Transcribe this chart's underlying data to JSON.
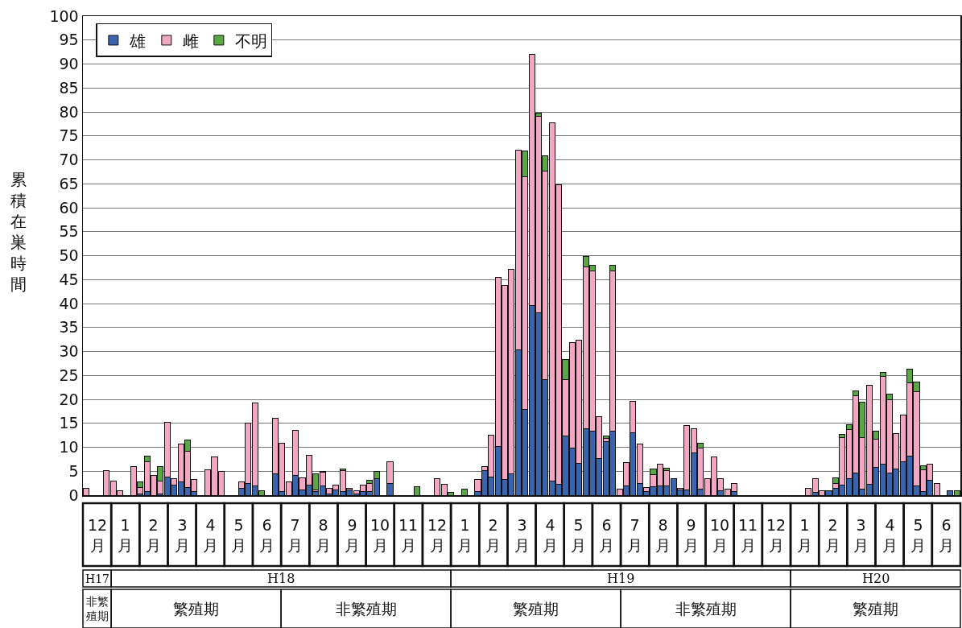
{
  "chart_data": {
    "type": "bar",
    "stacked": true,
    "ylabel": "累積在巣時間",
    "categories": [
      null,
      null,
      null,
      null,
      null,
      null,
      null,
      null,
      null,
      null,
      null,
      null,
      null,
      null,
      null,
      null,
      null,
      null,
      null,
      null,
      null,
      null,
      null,
      null,
      null,
      null,
      null,
      null,
      null,
      null,
      null,
      null,
      null,
      null,
      null,
      null,
      null,
      null,
      null,
      null,
      null,
      null,
      null,
      null,
      null,
      null,
      null,
      null,
      null,
      null,
      null,
      null,
      null,
      null,
      null,
      null,
      null,
      null,
      null,
      null,
      null,
      null,
      null,
      null,
      null,
      null,
      null,
      null,
      null,
      null,
      null,
      null,
      null,
      null,
      null,
      null,
      null,
      null,
      null,
      null,
      null,
      null,
      null,
      null,
      null,
      null,
      null,
      null,
      null,
      null,
      null,
      null,
      null,
      null,
      null,
      null,
      null,
      null,
      null,
      null,
      null,
      null,
      null,
      null,
      null,
      null,
      null,
      null,
      null,
      null,
      null,
      null,
      null,
      null,
      null,
      null,
      null,
      null,
      null,
      null,
      null,
      null,
      null,
      null,
      null,
      null,
      null,
      null,
      null,
      null
    ],
    "series": [
      {
        "name": "雄",
        "color": "#3a64ad",
        "values": [
          null,
          null,
          null,
          null,
          null,
          null,
          null,
          null,
          0.2,
          0.8,
          null,
          0.2,
          3.8,
          2.1,
          2.7,
          1.6,
          0.8,
          null,
          null,
          null,
          null,
          null,
          null,
          1.4,
          2.5,
          2.0,
          null,
          null,
          4.5,
          0.7,
          null,
          4.1,
          1.1,
          2.1,
          0.7,
          1.9,
          0.2,
          1.1,
          0.7,
          1.1,
          0.2,
          0.7,
          0.7,
          3.4,
          null,
          2.5,
          null,
          null,
          null,
          null,
          null,
          null,
          null,
          null,
          null,
          null,
          null,
          null,
          0.7,
          5.2,
          3.7,
          10.2,
          3.2,
          4.4,
          30.3,
          17.9,
          39.6,
          38.1,
          24.2,
          3.0,
          2.3,
          12.3,
          9.8,
          6.7,
          13.9,
          13.4,
          7.7,
          11.2,
          13.4,
          null,
          2.0,
          13.1,
          2.5,
          0.7,
          1.7,
          2.0,
          1.9,
          3.4,
          1.1,
          1.1,
          8.8,
          1.3,
          null,
          null,
          1.0,
          null,
          0.8,
          null,
          null,
          null,
          null,
          null,
          null,
          null,
          null,
          null,
          null,
          null,
          0.6,
          null,
          1.0,
          1.4,
          2.1,
          3.4,
          4.6,
          1.3,
          2.2,
          5.8,
          6.4,
          4.6,
          5.5,
          7.0,
          8.2,
          2.0,
          0.7,
          3.1,
          null,
          null,
          1.0,
          null
        ]
      },
      {
        "name": "雌",
        "color": "#f2a7c3",
        "values": [
          1.4,
          null,
          null,
          5.2,
          3.0,
          1.0,
          null,
          6.0,
          1.4,
          6.2,
          4.2,
          2.7,
          11.4,
          1.4,
          7.9,
          7.6,
          2.4,
          null,
          5.3,
          8.0,
          5.0,
          null,
          null,
          1.4,
          12.6,
          17.3,
          null,
          null,
          11.6,
          10.1,
          2.7,
          9.5,
          2.5,
          6.2,
          0.4,
          2.9,
          1.2,
          1.0,
          4.5,
          0.3,
          0.8,
          1.4,
          1.7,
          null,
          null,
          4.5,
          null,
          null,
          null,
          null,
          null,
          null,
          3.4,
          2.2,
          null,
          null,
          null,
          null,
          2.5,
          0.8,
          8.9,
          35.3,
          40.5,
          42.7,
          41.7,
          48.5,
          52.4,
          40.9,
          43.4,
          74.7,
          62.5,
          11.8,
          22.1,
          25.6,
          33.8,
          33.4,
          8.7,
          0.6,
          33.4,
          1.2,
          4.8,
          6.5,
          8.1,
          0.9,
          2.6,
          4.5,
          3.3,
          null,
          0.3,
          13.5,
          5.0,
          8.5,
          3.4,
          8.0,
          2.4,
          1.2,
          1.7,
          null,
          null,
          null,
          null,
          null,
          null,
          null,
          null,
          null,
          null,
          1.4,
          2.9,
          1.0,
          null,
          1.1,
          9.9,
          10.3,
          16.1,
          10.7,
          20.8,
          5.8,
          18.4,
          15.4,
          7.4,
          9.7,
          15.2,
          19.6,
          4.6,
          3.3,
          2.5,
          null,
          null,
          null
        ]
      },
      {
        "name": "不明",
        "color": "#5aa845",
        "values": [
          null,
          null,
          null,
          null,
          null,
          null,
          null,
          null,
          1.2,
          1.2,
          null,
          3.0,
          null,
          null,
          null,
          2.3,
          null,
          null,
          null,
          null,
          null,
          null,
          null,
          null,
          null,
          null,
          1.0,
          null,
          null,
          null,
          null,
          null,
          null,
          null,
          3.4,
          0.2,
          null,
          null,
          0.3,
          null,
          null,
          null,
          0.7,
          1.6,
          null,
          null,
          null,
          null,
          null,
          1.7,
          null,
          null,
          null,
          null,
          0.6,
          null,
          1.2,
          null,
          null,
          null,
          null,
          null,
          null,
          null,
          null,
          5.4,
          null,
          0.8,
          3.2,
          null,
          null,
          4.3,
          null,
          null,
          2.1,
          1.2,
          null,
          0.6,
          1.2,
          null,
          null,
          null,
          null,
          null,
          1.1,
          null,
          0.5,
          null,
          null,
          null,
          null,
          1.0,
          null,
          null,
          null,
          null,
          null,
          null,
          null,
          null,
          null,
          null,
          null,
          null,
          null,
          null,
          null,
          null,
          null,
          null,
          null,
          1.1,
          0.7,
          1.0,
          1.1,
          7.4,
          null,
          1.8,
          0.9,
          1.1,
          null,
          null,
          2.9,
          2.0,
          0.9,
          null,
          null,
          null,
          null,
          1.0
        ]
      }
    ],
    "ylim": [
      0,
      100
    ],
    "yticks": [
      0,
      5,
      10,
      15,
      20,
      25,
      30,
      35,
      40,
      45,
      50,
      55,
      60,
      65,
      70,
      75,
      80,
      85,
      90,
      95,
      100
    ],
    "grid": "y",
    "legend": "top left",
    "tick_labels": "y",
    "annotations": [
      "12月",
      "1月",
      "2月",
      "3月",
      "4月",
      "5月",
      "6月",
      "7月",
      "8月",
      "9月",
      "10月",
      "11月",
      "12月",
      "1月",
      "2月",
      "3月",
      "4月",
      "5月",
      "6月",
      "7月",
      "8月",
      "9月",
      "10月",
      "11月",
      "12月",
      "1月",
      "2月",
      "3月",
      "4月",
      "5月",
      "6月",
      "H17",
      "H18",
      "H19",
      "H20",
      "非繁殖期",
      "繁殖期",
      "非繁殖期",
      "繁殖期",
      "非繁殖期",
      "繁殖期"
    ]
  }
}
